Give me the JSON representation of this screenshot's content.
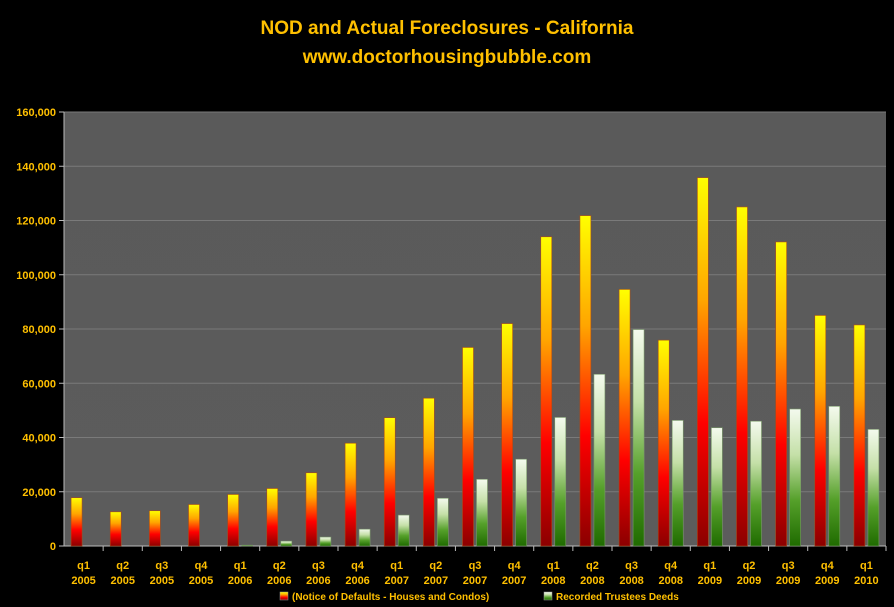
{
  "chart_data": {
    "type": "bar",
    "title": "NOD and Actual Foreclosures - California",
    "subtitle": "www.doctorhousingbubble.com",
    "xlabel": "",
    "ylabel": "",
    "ylim": [
      0,
      160000
    ],
    "yticks": [
      "0",
      "20,000",
      "40,000",
      "60,000",
      "80,000",
      "100,000",
      "120,000",
      "140,000",
      "160,000"
    ],
    "grid": true,
    "legend_position": "bottom",
    "categories": [
      [
        "q1",
        "2005"
      ],
      [
        "q2",
        "2005"
      ],
      [
        "q3",
        "2005"
      ],
      [
        "q4",
        "2005"
      ],
      [
        "q1",
        "2006"
      ],
      [
        "q2",
        "2006"
      ],
      [
        "q3",
        "2006"
      ],
      [
        "q4",
        "2006"
      ],
      [
        "q1",
        "2007"
      ],
      [
        "q2",
        "2007"
      ],
      [
        "q3",
        "2007"
      ],
      [
        "q4",
        "2007"
      ],
      [
        "q1",
        "2008"
      ],
      [
        "q2",
        "2008"
      ],
      [
        "q3",
        "2008"
      ],
      [
        "q4",
        "2008"
      ],
      [
        "q1",
        "2009"
      ],
      [
        "q2",
        "2009"
      ],
      [
        "q3",
        "2009"
      ],
      [
        "q4",
        "2009"
      ],
      [
        "q1",
        "2010"
      ]
    ],
    "series": [
      {
        "name": "(Notice of Defaults - Houses and Condos)",
        "colors": [
          "#8B0000",
          "#FF0000",
          "#FFA500",
          "#FFFF00"
        ],
        "values": [
          17800,
          12600,
          13000,
          15300,
          19000,
          21200,
          27000,
          37900,
          47300,
          54500,
          73200,
          82000,
          114000,
          121800,
          94600,
          75900,
          135800,
          125000,
          112100,
          85000,
          81500
        ]
      },
      {
        "name": "Recorded Trustees Deeds",
        "colors": [
          "#1F6B00",
          "#55A02A",
          "#C5E0A8",
          "#F4FAEE"
        ],
        "values": [
          0,
          0,
          0,
          0,
          300,
          1800,
          3300,
          6200,
          11400,
          17600,
          24600,
          32000,
          47400,
          63300,
          79800,
          46300,
          43600,
          46000,
          50500,
          51500,
          43000
        ]
      }
    ]
  }
}
